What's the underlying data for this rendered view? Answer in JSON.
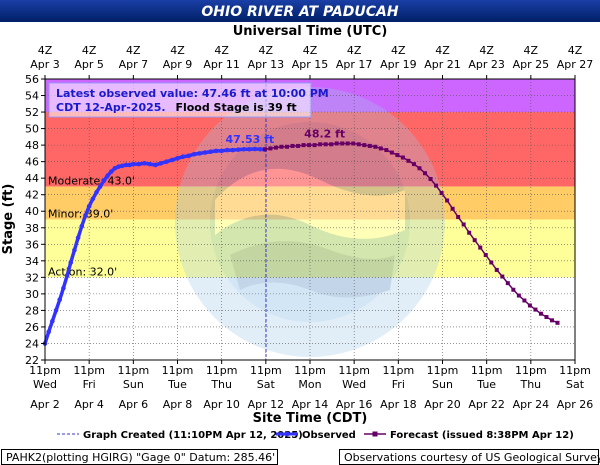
{
  "footer": {
    "left": "PAHK2(plotting HGIRG) \"Gage 0\" Datum: 285.46'",
    "right": "Observations courtesy of US Geological Survey"
  },
  "legend": {
    "created": "Graph Created (11:10PM Apr 12, 2025)",
    "observed": "Observed",
    "forecast": "Forecast (issued 8:38PM Apr 12)"
  },
  "chart_data": {
    "type": "line",
    "title": "OHIO RIVER AT PADUCAH",
    "top_axis_title": "Universal Time (UTC)",
    "xlabel": "Site Time (CDT)",
    "ylabel": "Stage (ft)",
    "ylim": [
      22,
      56
    ],
    "xlim": [
      "2025-04-02T23:00",
      "2025-04-26T23:00"
    ],
    "y_ticks": [
      22,
      24,
      26,
      28,
      30,
      32,
      34,
      36,
      38,
      40,
      42,
      44,
      46,
      48,
      50,
      52,
      54,
      56
    ],
    "grid": true,
    "x_ticks_bottom": [
      {
        "time": "11pm",
        "day": "Wed",
        "date": "Apr 2"
      },
      {
        "time": "11pm",
        "day": "Fri",
        "date": "Apr 4"
      },
      {
        "time": "11pm",
        "day": "Sun",
        "date": "Apr 6"
      },
      {
        "time": "11pm",
        "day": "Tue",
        "date": "Apr 8"
      },
      {
        "time": "11pm",
        "day": "Thu",
        "date": "Apr 10"
      },
      {
        "time": "11pm",
        "day": "Sat",
        "date": "Apr 12"
      },
      {
        "time": "11pm",
        "day": "Mon",
        "date": "Apr 14"
      },
      {
        "time": "11pm",
        "day": "Wed",
        "date": "Apr 16"
      },
      {
        "time": "11pm",
        "day": "Fri",
        "date": "Apr 18"
      },
      {
        "time": "11pm",
        "day": "Sun",
        "date": "Apr 20"
      },
      {
        "time": "11pm",
        "day": "Tue",
        "date": "Apr 22"
      },
      {
        "time": "11pm",
        "day": "Thu",
        "date": "Apr 24"
      },
      {
        "time": "11pm",
        "day": "Sat",
        "date": "Apr 26"
      }
    ],
    "x_ticks_top": [
      {
        "time": "4Z",
        "date": "Apr 3"
      },
      {
        "time": "4Z",
        "date": "Apr 5"
      },
      {
        "time": "4Z",
        "date": "Apr 7"
      },
      {
        "time": "4Z",
        "date": "Apr 9"
      },
      {
        "time": "4Z",
        "date": "Apr 11"
      },
      {
        "time": "4Z",
        "date": "Apr 13"
      },
      {
        "time": "4Z",
        "date": "Apr 15"
      },
      {
        "time": "4Z",
        "date": "Apr 17"
      },
      {
        "time": "4Z",
        "date": "Apr 19"
      },
      {
        "time": "4Z",
        "date": "Apr 21"
      },
      {
        "time": "4Z",
        "date": "Apr 23"
      },
      {
        "time": "4Z",
        "date": "Apr 25"
      },
      {
        "time": "4Z",
        "date": "Apr 27"
      }
    ],
    "bands": [
      {
        "from": 22,
        "to": 32,
        "color": "#ffffff"
      },
      {
        "from": 32,
        "to": 39,
        "color": "#ffff99"
      },
      {
        "from": 39,
        "to": 43,
        "color": "#ffcc66"
      },
      {
        "from": 43,
        "to": 52,
        "color": "#ff6666"
      },
      {
        "from": 52,
        "to": 56,
        "color": "#cc66ff"
      }
    ],
    "thresholds": [
      {
        "label": "Action: 32.0'",
        "value": 32
      },
      {
        "label": "Minor: 39.0'",
        "value": 39
      },
      {
        "label": "Moderate: 43.0'",
        "value": 43
      }
    ],
    "latest_observed_text": [
      "Latest observed value: 47.46 ft at 10:00 PM",
      "CDT 12-Apr-2025."
    ],
    "flood_stage_text": "Flood Stage is 39 ft",
    "observed_peak_label": "47.53 ft",
    "forecast_peak_label": "48.2 ft",
    "graph_created": "2025-04-12T23:10",
    "colors": {
      "observed": "#3333ff",
      "forecast": "#660066",
      "title": "#ffffff",
      "title_bg": "#003399"
    },
    "series": [
      {
        "name": "Observed",
        "points": [
          [
            "2025-04-02T23:00",
            24.0
          ],
          [
            "2025-04-03T03:00",
            25.4
          ],
          [
            "2025-04-03T07:00",
            26.7
          ],
          [
            "2025-04-03T11:00",
            28.0
          ],
          [
            "2025-04-03T15:00",
            29.3
          ],
          [
            "2025-04-03T19:00",
            30.7
          ],
          [
            "2025-04-03T23:00",
            32.2
          ],
          [
            "2025-04-04T03:00",
            33.8
          ],
          [
            "2025-04-04T07:00",
            35.3
          ],
          [
            "2025-04-04T11:00",
            36.8
          ],
          [
            "2025-04-04T15:00",
            38.2
          ],
          [
            "2025-04-04T19:00",
            39.5
          ],
          [
            "2025-04-04T23:00",
            40.6
          ],
          [
            "2025-04-05T03:00",
            41.5
          ],
          [
            "2025-04-05T07:00",
            42.3
          ],
          [
            "2025-04-05T11:00",
            43.0
          ],
          [
            "2025-04-05T15:00",
            43.7
          ],
          [
            "2025-04-05T19:00",
            44.3
          ],
          [
            "2025-04-05T23:00",
            44.8
          ],
          [
            "2025-04-06T03:00",
            45.2
          ],
          [
            "2025-04-06T07:00",
            45.4
          ],
          [
            "2025-04-06T11:00",
            45.5
          ],
          [
            "2025-04-06T15:00",
            45.6
          ],
          [
            "2025-04-06T19:00",
            45.6
          ],
          [
            "2025-04-06T23:00",
            45.7
          ],
          [
            "2025-04-07T05:00",
            45.7
          ],
          [
            "2025-04-07T11:00",
            45.8
          ],
          [
            "2025-04-07T17:00",
            45.7
          ],
          [
            "2025-04-07T23:00",
            45.6
          ],
          [
            "2025-04-08T05:00",
            45.8
          ],
          [
            "2025-04-08T11:00",
            46.0
          ],
          [
            "2025-04-08T17:00",
            46.2
          ],
          [
            "2025-04-08T23:00",
            46.4
          ],
          [
            "2025-04-09T05:00",
            46.6
          ],
          [
            "2025-04-09T11:00",
            46.7
          ],
          [
            "2025-04-09T17:00",
            46.9
          ],
          [
            "2025-04-09T23:00",
            47.0
          ],
          [
            "2025-04-10T05:00",
            47.1
          ],
          [
            "2025-04-10T11:00",
            47.2
          ],
          [
            "2025-04-10T17:00",
            47.3
          ],
          [
            "2025-04-10T23:00",
            47.3
          ],
          [
            "2025-04-11T05:00",
            47.4
          ],
          [
            "2025-04-11T11:00",
            47.4
          ],
          [
            "2025-04-11T17:00",
            47.45
          ],
          [
            "2025-04-11T23:00",
            47.5
          ],
          [
            "2025-04-12T05:00",
            47.5
          ],
          [
            "2025-04-12T11:00",
            47.53
          ],
          [
            "2025-04-12T17:00",
            47.5
          ],
          [
            "2025-04-12T22:00",
            47.46
          ]
        ]
      },
      {
        "name": "Forecast (issued 8:38PM Apr 12)",
        "points": [
          [
            "2025-04-12T22:00",
            47.5
          ],
          [
            "2025-04-13T04:00",
            47.6
          ],
          [
            "2025-04-13T10:00",
            47.7
          ],
          [
            "2025-04-13T16:00",
            47.8
          ],
          [
            "2025-04-13T22:00",
            47.8
          ],
          [
            "2025-04-14T04:00",
            47.9
          ],
          [
            "2025-04-14T10:00",
            47.9
          ],
          [
            "2025-04-14T16:00",
            48.0
          ],
          [
            "2025-04-14T22:00",
            48.0
          ],
          [
            "2025-04-15T04:00",
            48.0
          ],
          [
            "2025-04-15T10:00",
            48.1
          ],
          [
            "2025-04-15T16:00",
            48.1
          ],
          [
            "2025-04-15T22:00",
            48.1
          ],
          [
            "2025-04-16T04:00",
            48.2
          ],
          [
            "2025-04-16T10:00",
            48.2
          ],
          [
            "2025-04-16T16:00",
            48.2
          ],
          [
            "2025-04-16T22:00",
            48.2
          ],
          [
            "2025-04-17T04:00",
            48.1
          ],
          [
            "2025-04-17T10:00",
            48.0
          ],
          [
            "2025-04-17T16:00",
            47.9
          ],
          [
            "2025-04-17T22:00",
            47.8
          ],
          [
            "2025-04-18T04:00",
            47.6
          ],
          [
            "2025-04-18T10:00",
            47.4
          ],
          [
            "2025-04-18T16:00",
            47.1
          ],
          [
            "2025-04-18T22:00",
            46.8
          ],
          [
            "2025-04-19T04:00",
            46.5
          ],
          [
            "2025-04-19T10:00",
            46.1
          ],
          [
            "2025-04-19T16:00",
            45.7
          ],
          [
            "2025-04-19T22:00",
            45.2
          ],
          [
            "2025-04-20T04:00",
            44.6
          ],
          [
            "2025-04-20T10:00",
            43.9
          ],
          [
            "2025-04-20T16:00",
            43.1
          ],
          [
            "2025-04-20T22:00",
            42.2
          ],
          [
            "2025-04-21T04:00",
            41.3
          ],
          [
            "2025-04-21T10:00",
            40.3
          ],
          [
            "2025-04-21T16:00",
            39.3
          ],
          [
            "2025-04-21T22:00",
            38.4
          ],
          [
            "2025-04-22T04:00",
            37.4
          ],
          [
            "2025-04-22T10:00",
            36.5
          ],
          [
            "2025-04-22T16:00",
            35.6
          ],
          [
            "2025-04-22T22:00",
            34.7
          ],
          [
            "2025-04-23T04:00",
            33.8
          ],
          [
            "2025-04-23T10:00",
            32.9
          ],
          [
            "2025-04-23T16:00",
            32.1
          ],
          [
            "2025-04-23T22:00",
            31.3
          ],
          [
            "2025-04-24T04:00",
            30.5
          ],
          [
            "2025-04-24T10:00",
            29.8
          ],
          [
            "2025-04-24T16:00",
            29.2
          ],
          [
            "2025-04-24T22:00",
            28.6
          ],
          [
            "2025-04-25T04:00",
            28.1
          ],
          [
            "2025-04-25T10:00",
            27.6
          ],
          [
            "2025-04-25T16:00",
            27.2
          ],
          [
            "2025-04-25T22:00",
            26.8
          ],
          [
            "2025-04-26T04:00",
            26.5
          ]
        ]
      }
    ]
  }
}
